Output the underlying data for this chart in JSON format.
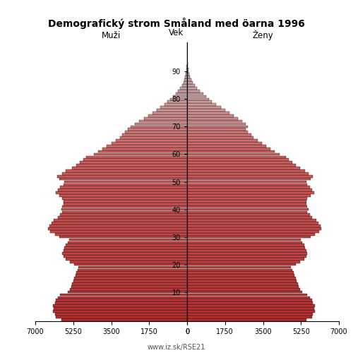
{
  "title": "Demografický strom Småland med öarna 1996",
  "label_males": "Muži",
  "label_females": "Ženy",
  "label_age": "Vek",
  "footnote": "www.iz.sk/RSE21",
  "xlim": 7000,
  "age_min": 0,
  "age_max": 100,
  "males": [
    5800,
    6050,
    6100,
    6200,
    6150,
    6200,
    6100,
    6050,
    5950,
    5850,
    5500,
    5400,
    5350,
    5300,
    5250,
    5200,
    5150,
    5100,
    5050,
    5000,
    5200,
    5400,
    5600,
    5700,
    5750,
    5700,
    5650,
    5600,
    5500,
    5450,
    5900,
    6100,
    6300,
    6400,
    6350,
    6250,
    6150,
    5950,
    5850,
    5750,
    5800,
    5750,
    5700,
    5700,
    5750,
    5900,
    6050,
    5950,
    5850,
    5700,
    5650,
    5900,
    6000,
    5750,
    5600,
    5300,
    5100,
    4950,
    4800,
    4650,
    4300,
    4100,
    3900,
    3700,
    3500,
    3300,
    3100,
    3000,
    2850,
    2750,
    2600,
    2400,
    2200,
    2000,
    1800,
    1600,
    1400,
    1250,
    1050,
    900,
    780,
    650,
    530,
    420,
    320,
    240,
    175,
    125,
    90,
    65,
    45,
    30,
    20,
    13,
    8,
    5,
    3,
    2,
    1,
    1,
    0
  ],
  "females": [
    5500,
    5750,
    5800,
    5900,
    5850,
    5900,
    5800,
    5750,
    5650,
    5550,
    5300,
    5200,
    5150,
    5100,
    5050,
    5000,
    4950,
    4900,
    4850,
    4800,
    5000,
    5200,
    5400,
    5500,
    5550,
    5500,
    5450,
    5400,
    5300,
    5250,
    5700,
    5900,
    6100,
    6200,
    6150,
    6050,
    5950,
    5750,
    5650,
    5550,
    5600,
    5550,
    5500,
    5500,
    5550,
    5700,
    5850,
    5750,
    5650,
    5550,
    5500,
    5700,
    5800,
    5600,
    5450,
    5200,
    5000,
    4850,
    4700,
    4550,
    4250,
    4050,
    3850,
    3650,
    3450,
    3250,
    3050,
    2950,
    2800,
    2700,
    2800,
    2700,
    2550,
    2350,
    2150,
    1950,
    1750,
    1550,
    1350,
    1150,
    1020,
    880,
    740,
    600,
    470,
    360,
    270,
    200,
    145,
    105,
    75,
    54,
    37,
    24,
    15,
    9,
    5,
    3,
    2,
    1,
    0
  ],
  "color_age_thresholds": [
    55,
    75
  ],
  "colors_young": "#b94040",
  "colors_mid1": "#cd8080",
  "colors_mid2": "#c8a0a0",
  "colors_old": "#b8b8b8",
  "edge_color": "#000000",
  "background_color": "#ffffff"
}
